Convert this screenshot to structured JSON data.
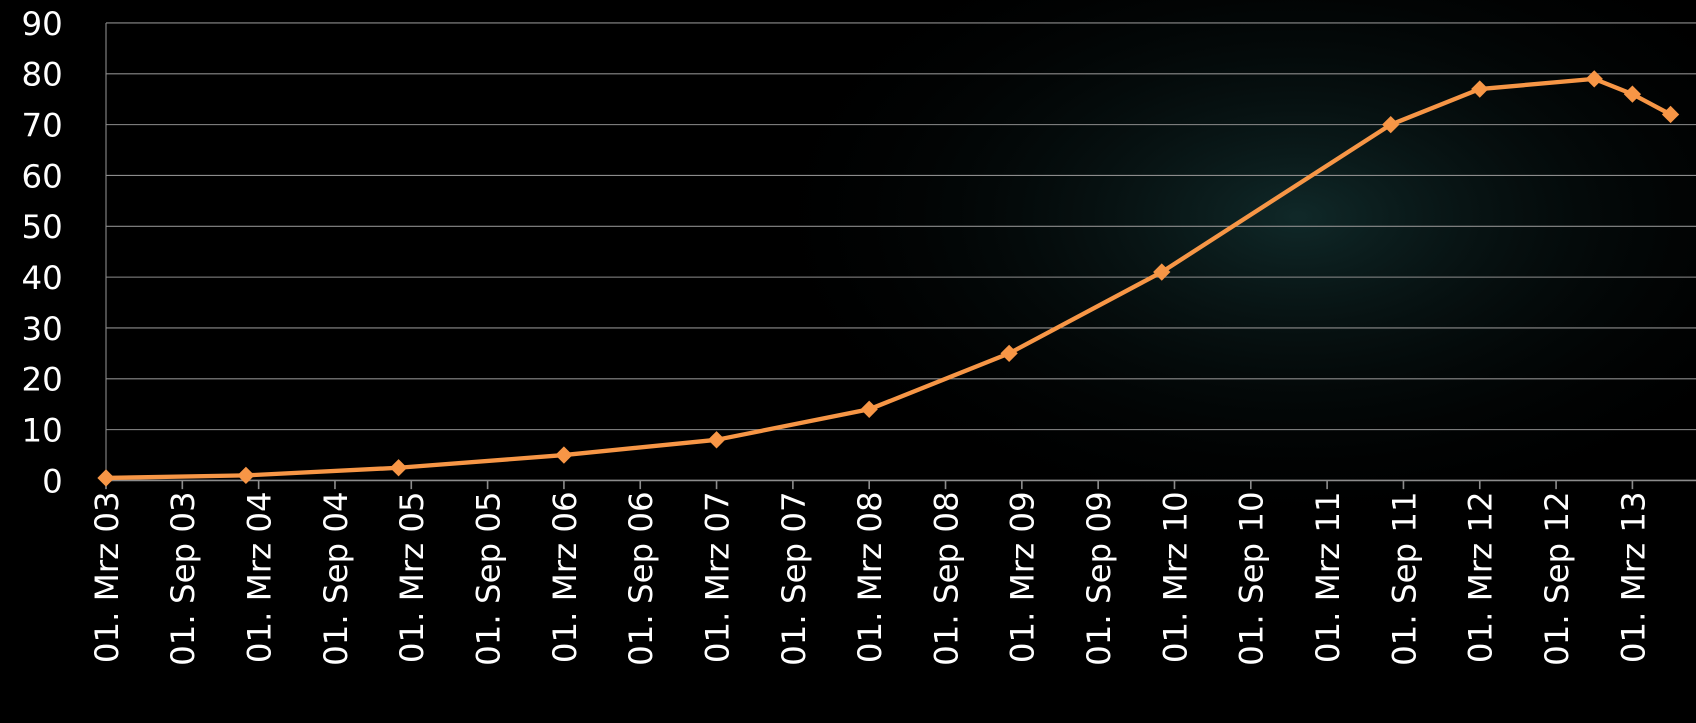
{
  "chart_data": {
    "type": "line",
    "x": [
      "2003-03",
      "2004-02",
      "2005-02",
      "2006-03",
      "2007-03",
      "2008-03",
      "2009-02",
      "2010-02",
      "2011-08",
      "2012-03",
      "2012-12",
      "2013-03",
      "2013-06"
    ],
    "series": [
      {
        "color": "#f79646",
        "values": [
          0.5,
          1,
          2.5,
          5,
          8,
          14,
          25,
          41,
          70,
          77,
          79,
          76,
          72
        ]
      }
    ],
    "xlim": [
      "2003-03",
      "2013-08"
    ],
    "xticks": [
      {
        "value": "2003-03",
        "label": "01. Mrz 03"
      },
      {
        "value": "2003-09",
        "label": "01. Sep 03"
      },
      {
        "value": "2004-03",
        "label": "01. Mrz 04"
      },
      {
        "value": "2004-09",
        "label": "01. Sep 04"
      },
      {
        "value": "2005-03",
        "label": "01. Mrz 05"
      },
      {
        "value": "2005-09",
        "label": "01. Sep 05"
      },
      {
        "value": "2006-03",
        "label": "01. Mrz 06"
      },
      {
        "value": "2006-09",
        "label": "01. Sep 06"
      },
      {
        "value": "2007-03",
        "label": "01. Mrz 07"
      },
      {
        "value": "2007-09",
        "label": "01. Sep 07"
      },
      {
        "value": "2008-03",
        "label": "01. Mrz 08"
      },
      {
        "value": "2008-09",
        "label": "01. Sep 08"
      },
      {
        "value": "2009-03",
        "label": "01. Mrz 09"
      },
      {
        "value": "2009-09",
        "label": "01. Sep 09"
      },
      {
        "value": "2010-03",
        "label": "01. Mrz 10"
      },
      {
        "value": "2010-09",
        "label": "01. Sep 10"
      },
      {
        "value": "2011-03",
        "label": "01. Mrz 11"
      },
      {
        "value": "2011-09",
        "label": "01. Sep 11"
      },
      {
        "value": "2012-03",
        "label": "01. Mrz 12"
      },
      {
        "value": "2012-09",
        "label": "01. Sep 12"
      },
      {
        "value": "2013-03",
        "label": "01. Mrz 13"
      }
    ],
    "ylim": [
      0,
      90
    ],
    "yticks": [
      0,
      10,
      20,
      30,
      40,
      50,
      60,
      70,
      80,
      90
    ],
    "grid": true
  }
}
